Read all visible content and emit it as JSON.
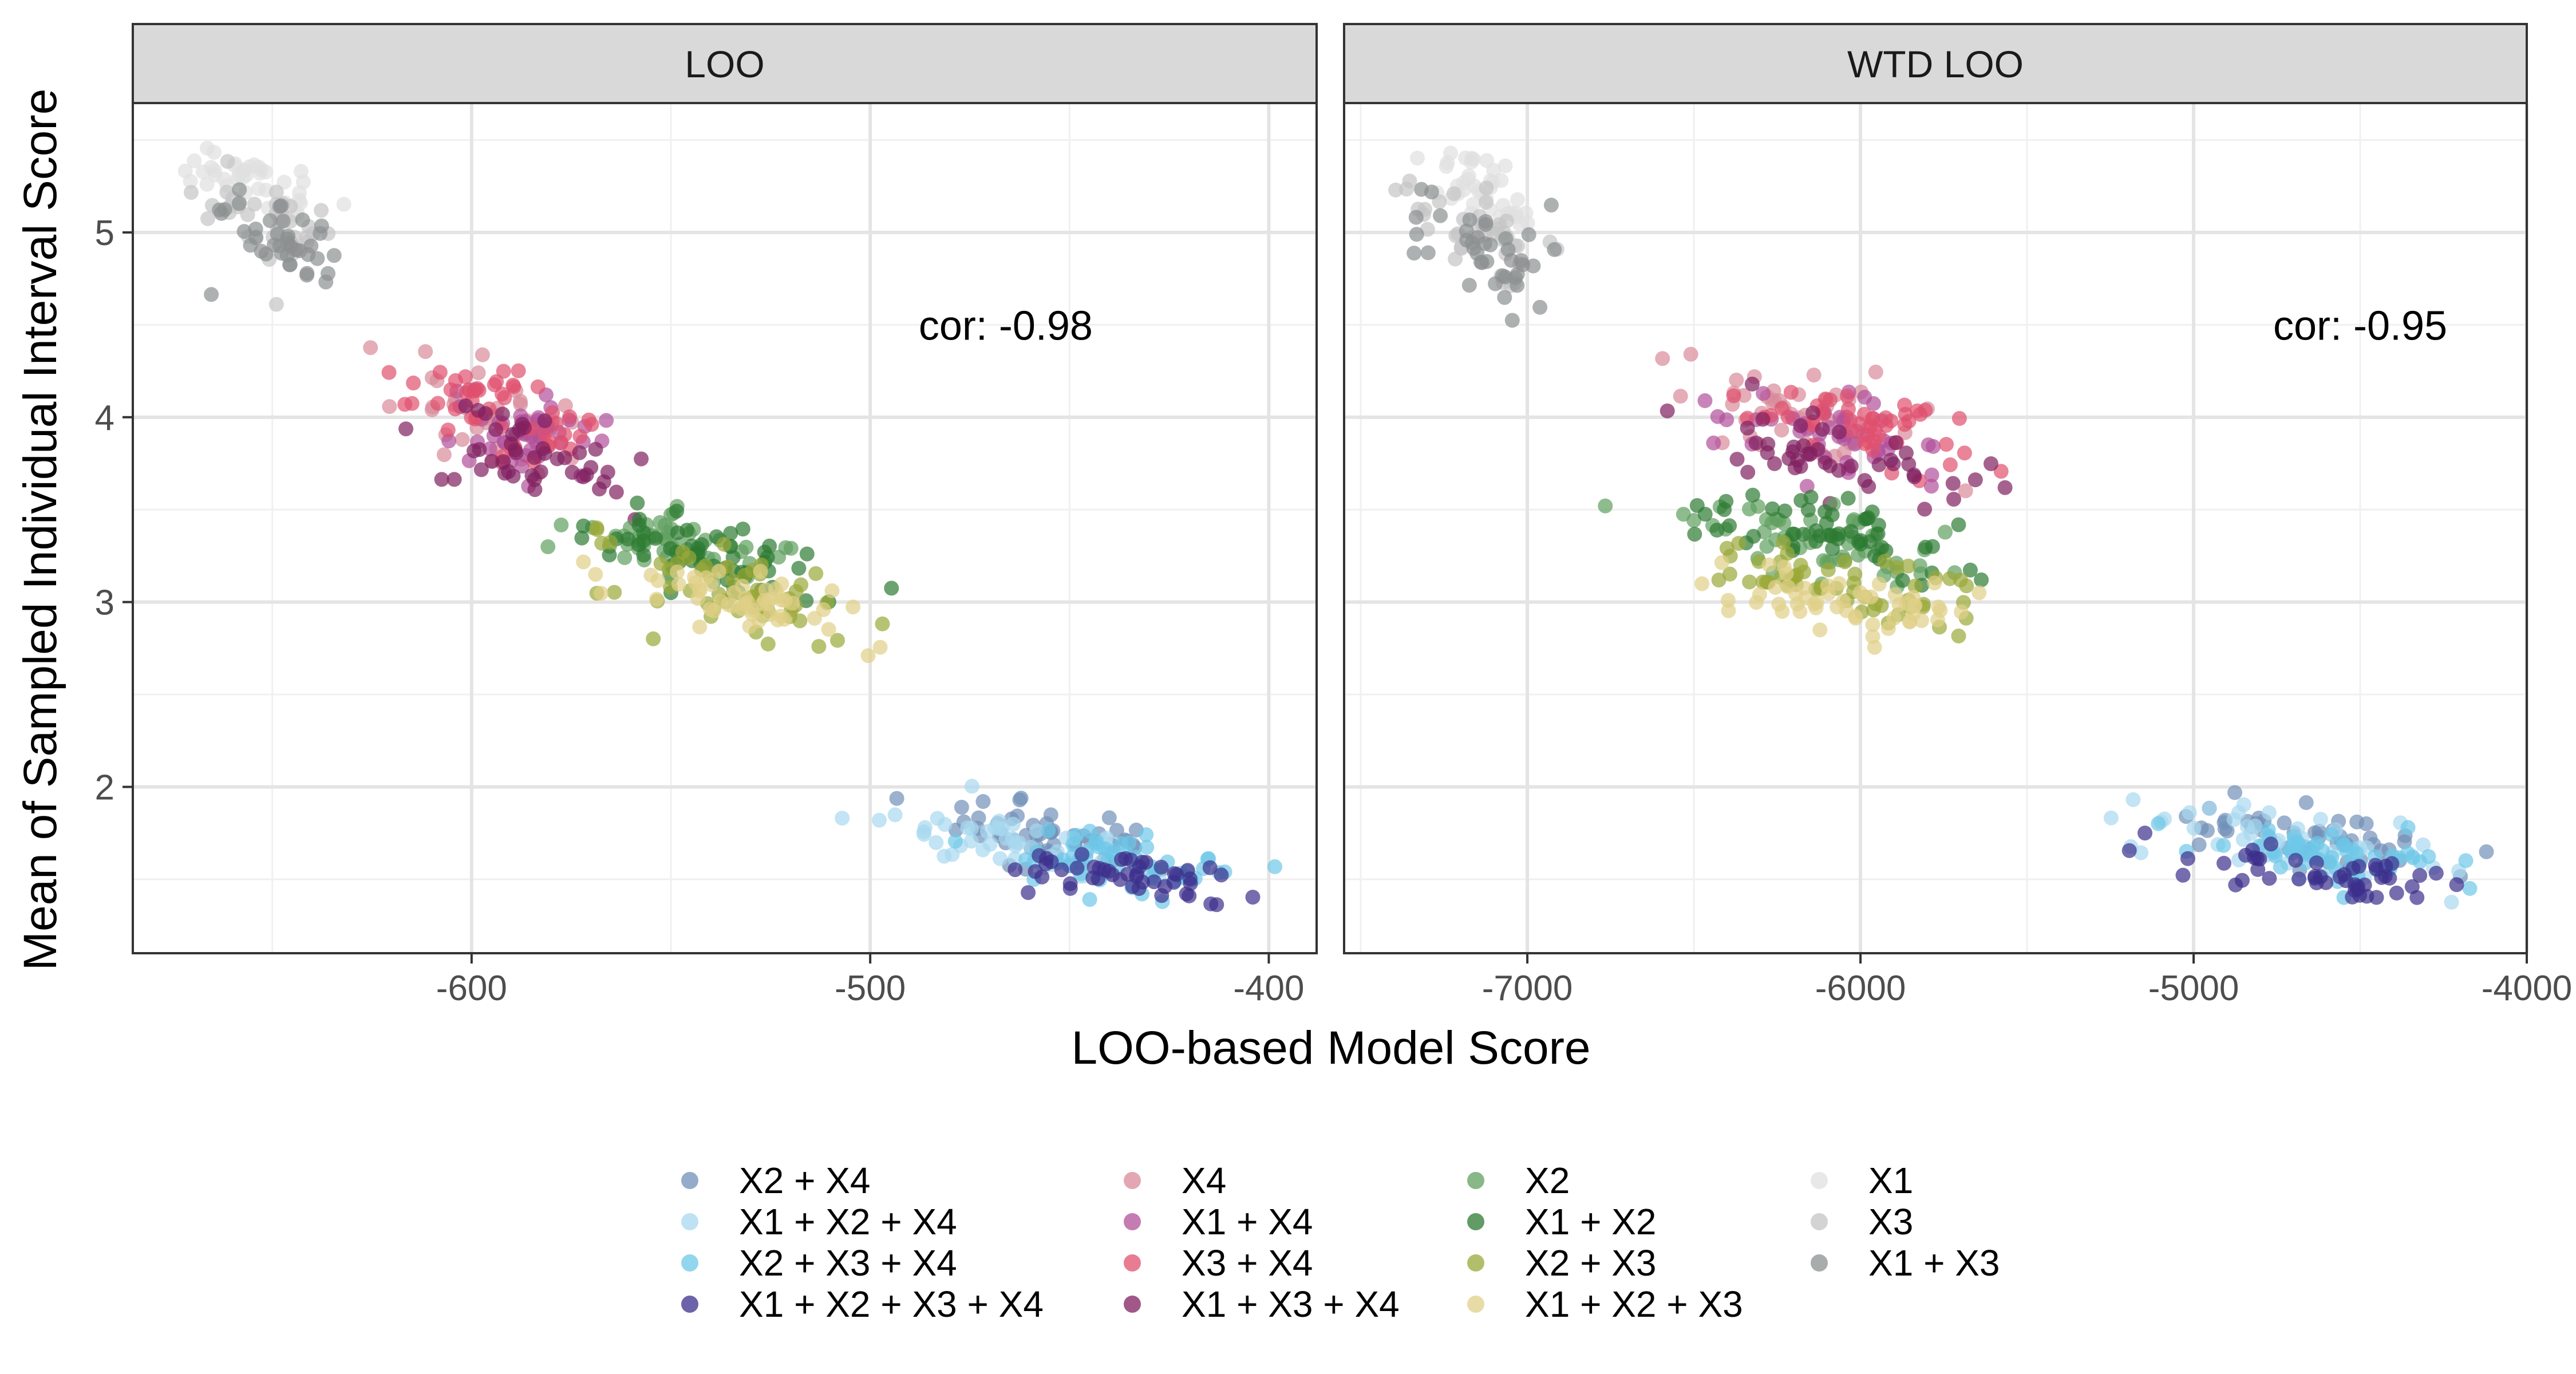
{
  "chart_data": {
    "type": "scatter",
    "xlabel": "LOO-based Model Score",
    "ylabel": "Mean of Sampled Individual Interval Score",
    "yticks": [
      2,
      3,
      4,
      5
    ],
    "ylim": [
      1.1,
      5.7
    ],
    "grid": true,
    "legend_position": "bottom",
    "panels": [
      {
        "strip_label": "LOO",
        "annotation": "cor: -0.98",
        "annotation_at": {
          "x": -466,
          "y": 4.5
        },
        "xlim": [
          -685,
          -388
        ],
        "xticks": [
          -600,
          -500,
          -400
        ],
        "xtick_labels": [
          "-600",
          "-500",
          "-400"
        ],
        "clusters": [
          {
            "name": "X1",
            "cx": -655,
            "cy": 5.28,
            "sx": 8,
            "sy": 0.1,
            "n": 40
          },
          {
            "name": "X3",
            "cx": -650,
            "cy": 5.05,
            "sx": 8,
            "sy": 0.14,
            "n": 40
          },
          {
            "name": "X1 + X3",
            "cx": -648,
            "cy": 4.98,
            "sx": 8,
            "sy": 0.14,
            "n": 40
          },
          {
            "name": "X4",
            "cx": -596,
            "cy": 4.02,
            "sx": 10,
            "sy": 0.16,
            "n": 45
          },
          {
            "name": "X1 + X4",
            "cx": -585,
            "cy": 3.9,
            "sx": 9,
            "sy": 0.14,
            "n": 45
          },
          {
            "name": "X3 + X4",
            "cx": -590,
            "cy": 3.98,
            "sx": 11,
            "sy": 0.15,
            "n": 50
          },
          {
            "name": "X1 + X3 + X4",
            "cx": -588,
            "cy": 3.82,
            "sx": 11,
            "sy": 0.14,
            "n": 45
          },
          {
            "name": "X2",
            "cx": -548,
            "cy": 3.32,
            "sx": 13,
            "sy": 0.13,
            "n": 55
          },
          {
            "name": "X1 + X2",
            "cx": -542,
            "cy": 3.25,
            "sx": 13,
            "sy": 0.13,
            "n": 55
          },
          {
            "name": "X2 + X3",
            "cx": -538,
            "cy": 3.08,
            "sx": 13,
            "sy": 0.12,
            "n": 55
          },
          {
            "name": "X1 + X2 + X3",
            "cx": -530,
            "cy": 3.0,
            "sx": 14,
            "sy": 0.1,
            "n": 55
          },
          {
            "name": "X2 + X4",
            "cx": -455,
            "cy": 1.72,
            "sx": 15,
            "sy": 0.1,
            "n": 55
          },
          {
            "name": "X1 + X2 + X4",
            "cx": -460,
            "cy": 1.68,
            "sx": 16,
            "sy": 0.1,
            "n": 50
          },
          {
            "name": "X2 + X3 + X4",
            "cx": -440,
            "cy": 1.62,
            "sx": 16,
            "sy": 0.1,
            "n": 55
          },
          {
            "name": "X1 + X2 + X3 + X4",
            "cx": -435,
            "cy": 1.52,
            "sx": 15,
            "sy": 0.08,
            "n": 50
          }
        ]
      },
      {
        "strip_label": "WTD LOO",
        "annotation": "cor: -0.95",
        "annotation_at": {
          "x": -4500,
          "y": 4.5
        },
        "xlim": [
          -7550,
          -4000
        ],
        "xticks": [
          -7000,
          -6000,
          -5000,
          -4000
        ],
        "xtick_labels": [
          "-7000",
          "-6000",
          "-5000",
          "-4000"
        ],
        "clusters": [
          {
            "name": "X1",
            "cx": -7120,
            "cy": 5.25,
            "sx": 80,
            "sy": 0.12,
            "n": 40
          },
          {
            "name": "X3",
            "cx": -7140,
            "cy": 5.02,
            "sx": 90,
            "sy": 0.14,
            "n": 40
          },
          {
            "name": "X1 + X3",
            "cx": -7130,
            "cy": 4.95,
            "sx": 85,
            "sy": 0.15,
            "n": 40
          },
          {
            "name": "X4",
            "cx": -6150,
            "cy": 4.0,
            "sx": 180,
            "sy": 0.16,
            "n": 45
          },
          {
            "name": "X1 + X4",
            "cx": -6050,
            "cy": 3.85,
            "sx": 170,
            "sy": 0.15,
            "n": 45
          },
          {
            "name": "X3 + X4",
            "cx": -6000,
            "cy": 3.98,
            "sx": 150,
            "sy": 0.13,
            "n": 50
          },
          {
            "name": "X1 + X3 + X4",
            "cx": -6100,
            "cy": 3.8,
            "sx": 170,
            "sy": 0.15,
            "n": 45
          },
          {
            "name": "X2",
            "cx": -6150,
            "cy": 3.35,
            "sx": 190,
            "sy": 0.13,
            "n": 55
          },
          {
            "name": "X1 + X2",
            "cx": -6050,
            "cy": 3.35,
            "sx": 190,
            "sy": 0.13,
            "n": 55
          },
          {
            "name": "X2 + X3",
            "cx": -6050,
            "cy": 3.1,
            "sx": 200,
            "sy": 0.12,
            "n": 55
          },
          {
            "name": "X1 + X2 + X3",
            "cx": -6050,
            "cy": 3.0,
            "sx": 210,
            "sy": 0.12,
            "n": 55
          },
          {
            "name": "X2 + X4",
            "cx": -4650,
            "cy": 1.72,
            "sx": 190,
            "sy": 0.1,
            "n": 55
          },
          {
            "name": "X1 + X2 + X4",
            "cx": -4700,
            "cy": 1.7,
            "sx": 220,
            "sy": 0.1,
            "n": 50
          },
          {
            "name": "X2 + X3 + X4",
            "cx": -4600,
            "cy": 1.62,
            "sx": 210,
            "sy": 0.1,
            "n": 55
          },
          {
            "name": "X1 + X2 + X3 + X4",
            "cx": -4550,
            "cy": 1.52,
            "sx": 190,
            "sy": 0.08,
            "n": 50
          }
        ]
      }
    ],
    "series": [
      {
        "name": "X2 + X4",
        "color": "#7090b8"
      },
      {
        "name": "X1 + X2 + X4",
        "color": "#a8d8f0"
      },
      {
        "name": "X2 + X3 + X4",
        "color": "#6ec8e8"
      },
      {
        "name": "X1 + X2 + X3 + X4",
        "color": "#3c2f8c"
      },
      {
        "name": "X4",
        "color": "#d88a9a"
      },
      {
        "name": "X1 + X4",
        "color": "#b0509a"
      },
      {
        "name": "X3 + X4",
        "color": "#e0506e"
      },
      {
        "name": "X1 + X3 + X4",
        "color": "#802060"
      },
      {
        "name": "X2",
        "color": "#60a060"
      },
      {
        "name": "X1 + X2",
        "color": "#2c7a32"
      },
      {
        "name": "X2 + X3",
        "color": "#9aa838"
      },
      {
        "name": "X1 + X2 + X3",
        "color": "#e0d088"
      },
      {
        "name": "X1",
        "color": "#e0e0e0"
      },
      {
        "name": "X3",
        "color": "#c4c4c4"
      },
      {
        "name": "X1 + X3",
        "color": "#8c9090"
      }
    ]
  }
}
